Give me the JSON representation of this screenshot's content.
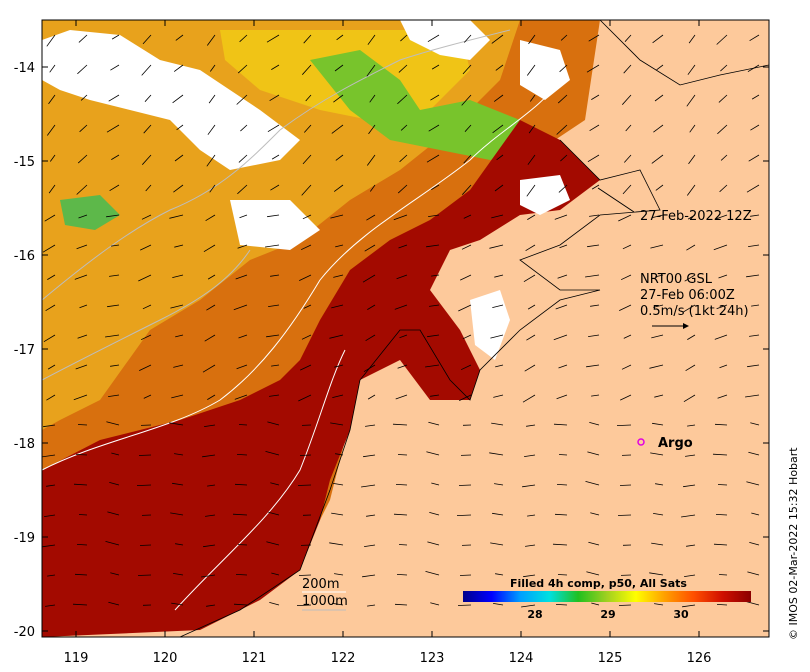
{
  "map": {
    "x_ticks": [
      "119",
      "120",
      "121",
      "122",
      "123",
      "124",
      "125",
      "126"
    ],
    "y_ticks": [
      "-14",
      "-15",
      "-16",
      "-17",
      "-18",
      "-19",
      "-20"
    ],
    "colors": {
      "land": "#fdc99b",
      "sst_hot": "#a30a00",
      "sst_warm": "#cf5a0a",
      "sst_mid": "#e38d16",
      "sst_cool": "#f3c90e",
      "sst_green": "#6fc22c",
      "cloud": "#ffffff",
      "bathymetry_200m": "#ffffff",
      "bathymetry_1000m": "#bdbdbd",
      "argo": "#e000e0"
    }
  },
  "annotations": {
    "cyclone_time": "27-Feb-2022 12Z",
    "wind_source": "NRT00 GSL",
    "wind_time": "27-Feb 06:00Z",
    "wind_scale": "0.5m/s (1kt 24h)",
    "argo_label": "Argo"
  },
  "legend": {
    "contour_200": "200m",
    "contour_1000": "1000m"
  },
  "colorbar": {
    "title": "Filled 4h comp, p50, All Sats",
    "ticks": [
      "28",
      "29",
      "30"
    ],
    "stops": [
      "#00008b",
      "#0000ff",
      "#00a0ff",
      "#00e0e0",
      "#20c020",
      "#a0d020",
      "#ffff00",
      "#ffa000",
      "#ff5000",
      "#d01000",
      "#8b0000"
    ]
  },
  "credit": "© IMOS 02-Mar-2022 15:32 Hobart"
}
